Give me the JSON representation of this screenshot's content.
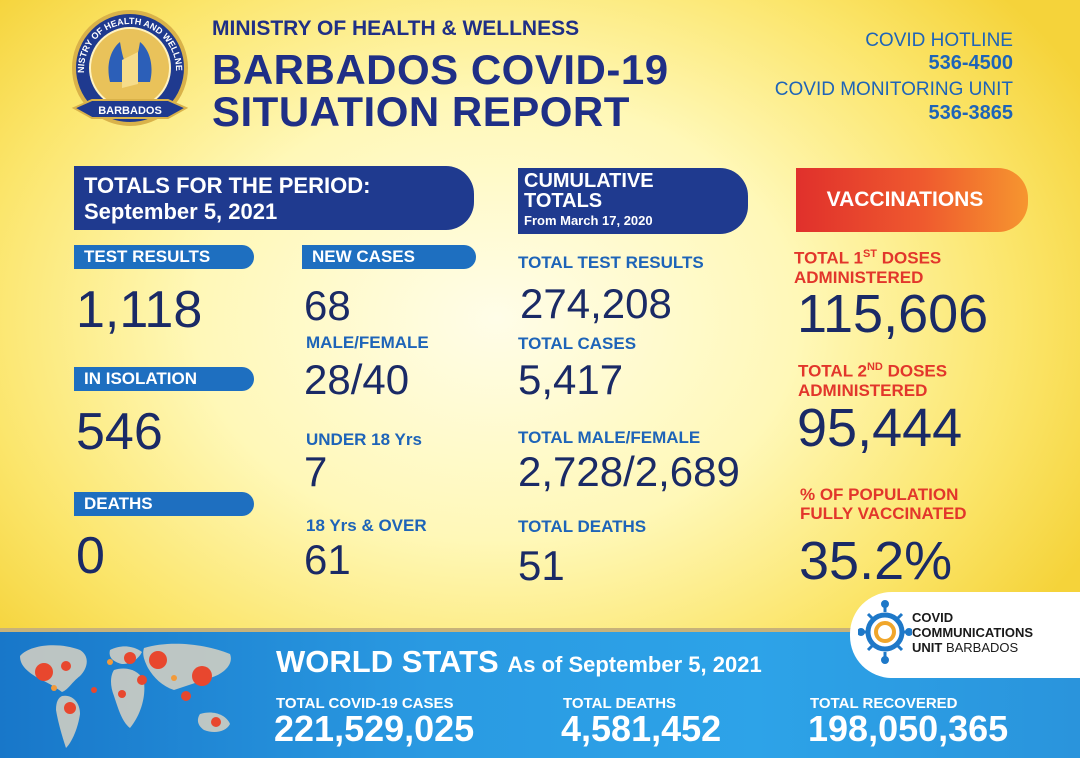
{
  "header": {
    "ministry": "MINISTRY OF HEALTH & WELLNESS",
    "title_line1": "BARBADOS COVID-19",
    "title_line2": "SITUATION REPORT",
    "logo_arc_text": "MINISTRY OF HEALTH AND WELLNESS",
    "logo_banner_text": "BARBADOS",
    "hotline_label": "COVID HOTLINE",
    "hotline_number": "536-4500",
    "monitoring_label": "COVID MONITORING UNIT",
    "monitoring_number": "536-3865"
  },
  "period": {
    "banner_line1": "TOTALS FOR THE PERIOD:",
    "banner_line2": "September 5, 2021",
    "test_results_label": "TEST RESULTS",
    "test_results_value": "1,118",
    "isolation_label": "IN ISOLATION",
    "isolation_value": "546",
    "deaths_label": "DEATHS",
    "deaths_value": "0",
    "new_cases_label": "NEW CASES",
    "new_cases_value": "68",
    "male_female_label": "MALE/FEMALE",
    "male_female_value": "28/40",
    "under18_label": "UNDER 18 Yrs",
    "under18_value": "7",
    "over18_label": "18 Yrs & OVER",
    "over18_value": "61"
  },
  "cumulative": {
    "banner_line1": "CUMULATIVE",
    "banner_line2": "TOTALS",
    "banner_sub": "From March 17, 2020",
    "test_results_label": "TOTAL TEST RESULTS",
    "test_results_value": "274,208",
    "cases_label": "TOTAL CASES",
    "cases_value": "5,417",
    "male_female_label": "TOTAL MALE/FEMALE",
    "male_female_value": "2,728/2,689",
    "deaths_label": "TOTAL DEATHS",
    "deaths_value": "51"
  },
  "vaccinations": {
    "banner": "VACCINATIONS",
    "first_label_a": "TOTAL 1",
    "first_sup": "ST",
    "first_label_b": " DOSES",
    "first_label_line2": "ADMINISTERED",
    "first_value": "115,606",
    "second_label_a": "TOTAL 2",
    "second_sup": "ND",
    "second_label_b": " DOSES",
    "second_label_line2": "ADMINISTERED",
    "second_value": "95,444",
    "pct_label_line1": "% OF POPULATION",
    "pct_label_line2": "FULLY VACCINATED",
    "pct_value": "35.2%"
  },
  "world": {
    "title": "WORLD STATS",
    "subtitle": "As of September 5, 2021",
    "cases_label": "TOTAL COVID-19 CASES",
    "cases_value": "221,529,025",
    "deaths_label": "TOTAL DEATHS",
    "deaths_value": "4,581,452",
    "recovered_label": "TOTAL RECOVERED",
    "recovered_value": "198,050,365"
  },
  "ccu": {
    "line1": "COVID",
    "line2": "COMMUNICATIONS",
    "line3a": "UNIT",
    "line3b": " BARBADOS"
  },
  "colors": {
    "navy": "#1f2f86",
    "blue": "#1e64b8",
    "red": "#e2362b",
    "banner_navy": "#1f3a8f",
    "world_blue": "#2a9ae2"
  }
}
